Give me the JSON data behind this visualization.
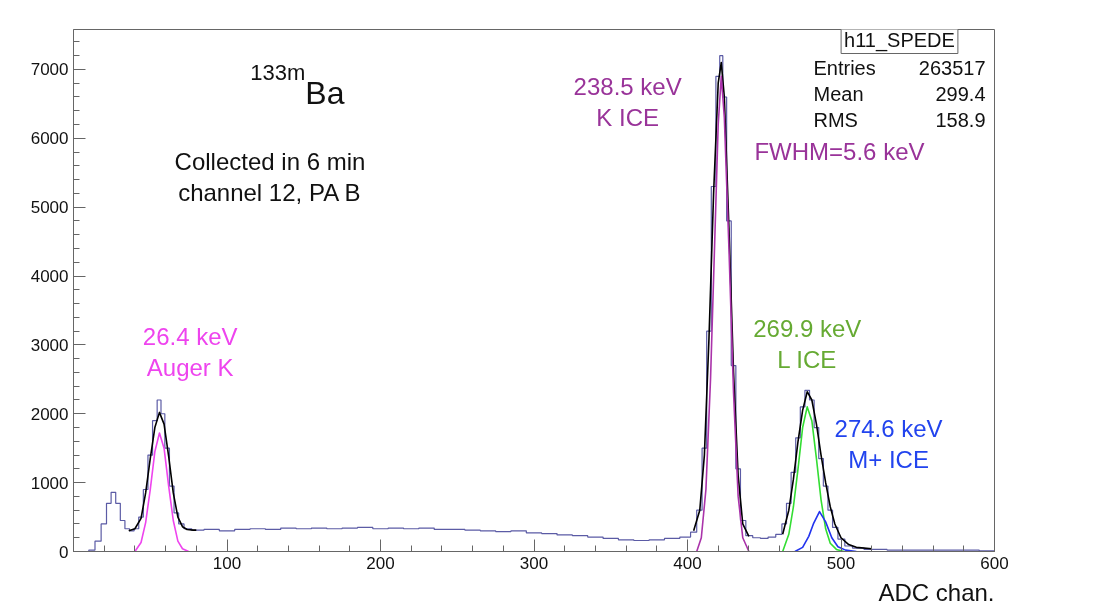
{
  "chart_data": {
    "type": "line",
    "xlabel": "ADC chan.",
    "xlim": [
      0,
      600
    ],
    "xticks": [
      100,
      200,
      300,
      400,
      500,
      600
    ],
    "ylim": [
      0,
      7580
    ],
    "yticks": [
      0,
      1000,
      2000,
      3000,
      4000,
      5000,
      6000,
      7000
    ],
    "grid": false,
    "marker": "none",
    "line_style": "solid",
    "series": [
      {
        "type": "step",
        "color": "#5b5ba5",
        "x": [
          8,
          12,
          16,
          20,
          23,
          26,
          29,
          32,
          35,
          38,
          41,
          44,
          47,
          50,
          53,
          56,
          58,
          61,
          64,
          67,
          70,
          74,
          80,
          90,
          100,
          110,
          120,
          130,
          140,
          150,
          160,
          170,
          180,
          190,
          200,
          210,
          220,
          230,
          240,
          250,
          260,
          270,
          280,
          290,
          300,
          310,
          320,
          330,
          340,
          350,
          360,
          370,
          380,
          390,
          400,
          404,
          408,
          411,
          414,
          417,
          420,
          422,
          424,
          427,
          430,
          433,
          436,
          440,
          445,
          450,
          455,
          460,
          463,
          466,
          469,
          472,
          475,
          478,
          481,
          484,
          487,
          490,
          493,
          496,
          500,
          505,
          510,
          520,
          540,
          560,
          580,
          600
        ],
        "values": [
          0,
          20,
          150,
          400,
          700,
          860,
          700,
          450,
          330,
          300,
          330,
          500,
          900,
          1400,
          1900,
          2200,
          2000,
          1500,
          950,
          560,
          400,
          330,
          310,
          320,
          300,
          320,
          330,
          320,
          340,
          330,
          340,
          330,
          340,
          350,
          330,
          340,
          330,
          340,
          320,
          320,
          310,
          300,
          290,
          300,
          270,
          260,
          240,
          230,
          210,
          190,
          170,
          160,
          170,
          190,
          210,
          280,
          600,
          1500,
          3200,
          5300,
          6900,
          7200,
          6600,
          4800,
          2700,
          1200,
          450,
          230,
          200,
          190,
          210,
          250,
          400,
          700,
          1150,
          1650,
          2100,
          2340,
          2200,
          1800,
          1350,
          950,
          600,
          350,
          180,
          80,
          50,
          30,
          20,
          20,
          20,
          10
        ]
      },
      {
        "color": "#000000",
        "x": [
          36,
          40,
          44,
          47,
          50,
          53,
          56,
          59,
          62,
          65,
          68,
          71,
          74,
          78,
          80,
          240,
          404,
          408,
          411,
          414,
          417,
          420,
          422,
          424,
          427,
          430,
          433,
          436,
          440,
          450,
          462,
          466,
          469,
          472,
          475,
          478,
          481,
          484,
          487,
          490,
          493,
          496,
          500,
          505,
          510,
          520
        ],
        "values": [
          300,
          330,
          480,
          850,
          1350,
          1800,
          2020,
          1850,
          1380,
          850,
          500,
          360,
          320,
          310,
          310,
          null,
          300,
          600,
          1400,
          3100,
          5200,
          6800,
          7100,
          6600,
          4700,
          2600,
          1100,
          400,
          220,
          null,
          250,
          600,
          1050,
          1600,
          2050,
          2320,
          2200,
          1850,
          1400,
          1000,
          650,
          400,
          200,
          100,
          60,
          40
        ]
      },
      {
        "color": "#ee44ee",
        "x": [
          40,
          44,
          47,
          50,
          53,
          56,
          59,
          62,
          65,
          68,
          71,
          75
        ],
        "values": [
          0,
          130,
          420,
          900,
          1450,
          1720,
          1500,
          950,
          450,
          150,
          40,
          0
        ]
      },
      {
        "color": "#aa33aa",
        "x": [
          406,
          409,
          412,
          415,
          418,
          420,
          422,
          424,
          427,
          430,
          433,
          436,
          440
        ],
        "values": [
          0,
          200,
          900,
          2500,
          4700,
          6200,
          6900,
          6300,
          4400,
          2300,
          800,
          200,
          0
        ]
      },
      {
        "color": "#33dd33",
        "x": [
          462,
          466,
          469,
          472,
          475,
          478,
          481,
          484,
          487,
          490,
          493,
          497,
          502
        ],
        "values": [
          0,
          250,
          650,
          1200,
          1800,
          2100,
          1900,
          1350,
          750,
          330,
          120,
          30,
          0
        ]
      },
      {
        "color": "#2233ee",
        "x": [
          470,
          475,
          479,
          482,
          486,
          490,
          494,
          498,
          503,
          510
        ],
        "values": [
          0,
          60,
          220,
          400,
          580,
          430,
          200,
          70,
          20,
          0
        ]
      }
    ],
    "annotations": [
      "$^{133m}$Ba",
      "Collected in 6 min\nchannel 12, PA B",
      "26.4 keV\nAuger K",
      "238.5 keV\nK ICE",
      "FWHM=5.6 keV",
      "269.9 keV\nL ICE",
      "274.6 keV\nM+ ICE",
      "h11_SPEDE",
      "Entries 263517",
      "Mean 299.4",
      "RMS 158.9"
    ]
  }
}
